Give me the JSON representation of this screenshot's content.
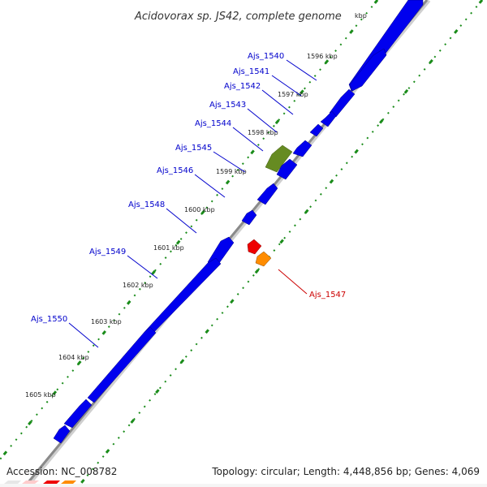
{
  "title": "Acidovorax sp. JS42, complete genome",
  "title_unit": "kbp",
  "footer": {
    "accession": "Accession: NC_008782",
    "topology": "Topology: circular; Length: 4,448,856 bp; Genes: 4,069"
  },
  "colors": {
    "forward_gene": "#0000ee",
    "reverse_gene_red": "#ee0000",
    "reverse_gene_orange": "#ff8c00",
    "highlight_gene": "#668b22",
    "tick_line": "#1a8c1a",
    "label_blue": "#0000cc",
    "label_red": "#cc0000",
    "backbone": "#9a9a9a"
  },
  "ruler": [
    {
      "kbp": 1596,
      "label": "1596 kbp"
    },
    {
      "kbp": 1597,
      "label": "1597 kbp"
    },
    {
      "kbp": 1598,
      "label": "1598 kbp"
    },
    {
      "kbp": 1599,
      "label": "1599 kbp"
    },
    {
      "kbp": 1600,
      "label": "1600 kbp"
    },
    {
      "kbp": 1601,
      "label": "1601 kbp"
    },
    {
      "kbp": 1602,
      "label": "1602 kbp"
    },
    {
      "kbp": 1603,
      "label": "1603 kbp"
    },
    {
      "kbp": 1604,
      "label": "1604 kbp"
    },
    {
      "kbp": 1605,
      "label": "1605 kbp"
    }
  ],
  "genes": [
    {
      "id": "Ajs_1540",
      "strand": "+"
    },
    {
      "id": "Ajs_1541",
      "strand": "+"
    },
    {
      "id": "Ajs_1542",
      "strand": "+"
    },
    {
      "id": "Ajs_1543",
      "strand": "+"
    },
    {
      "id": "Ajs_1544",
      "strand": "+"
    },
    {
      "id": "Ajs_1545",
      "strand": "+",
      "highlight": true
    },
    {
      "id": "Ajs_1546",
      "strand": "+"
    },
    {
      "id": "Ajs_1547",
      "strand": "-"
    },
    {
      "id": "Ajs_1548",
      "strand": "+"
    },
    {
      "id": "Ajs_1549",
      "strand": "+"
    },
    {
      "id": "Ajs_1550",
      "strand": "+"
    }
  ]
}
